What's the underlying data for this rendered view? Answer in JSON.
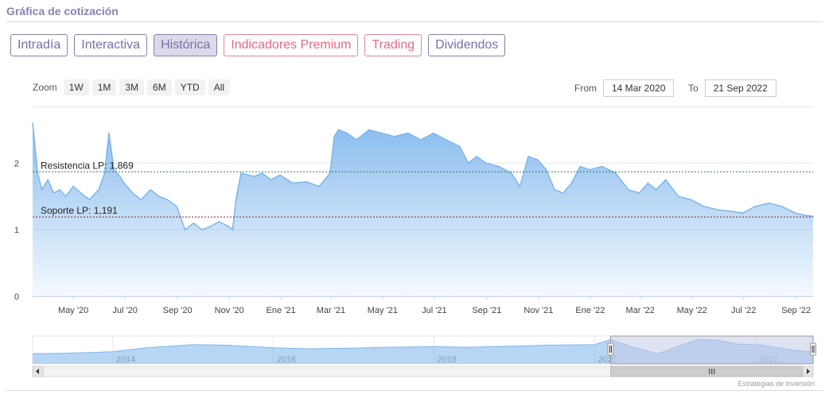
{
  "header": {
    "title": "Gráfica de cotización"
  },
  "tabs": [
    {
      "label": "Intradía",
      "style": "purple"
    },
    {
      "label": "Interactiva",
      "style": "purple"
    },
    {
      "label": "Histórica",
      "style": "purple",
      "active": true
    },
    {
      "label": "Indicadores Premium",
      "style": "pink"
    },
    {
      "label": "Trading",
      "style": "pink"
    },
    {
      "label": "Dividendos",
      "style": "purple"
    }
  ],
  "zoom": {
    "label": "Zoom",
    "buttons": [
      "1W",
      "1M",
      "3M",
      "6M",
      "YTD",
      "All"
    ]
  },
  "range": {
    "from_label": "From",
    "from_value": "14 Mar 2020",
    "to_label": "To",
    "to_value": "21 Sep 2022"
  },
  "credits": "Estrategias de Inversión",
  "colors": {
    "line": "#7cb5ec",
    "resistance": "#2e7d4f",
    "support": "#8b1a2b",
    "nav_mask": "#c5cae5"
  },
  "chart_data": {
    "type": "area",
    "series": [
      {
        "x": [
          "2020-03-14",
          "2020-03-20",
          "2020-03-25",
          "2020-04-01",
          "2020-04-08",
          "2020-04-15",
          "2020-04-22",
          "2020-05-01",
          "2020-05-10",
          "2020-05-20",
          "2020-05-31",
          "2020-06-07",
          "2020-06-12",
          "2020-06-18",
          "2020-06-25",
          "2020-06-30",
          "2020-07-10",
          "2020-07-20",
          "2020-07-31",
          "2020-08-10",
          "2020-08-20",
          "2020-08-31",
          "2020-09-10",
          "2020-09-20",
          "2020-09-30",
          "2020-10-10",
          "2020-10-20",
          "2020-10-31",
          "2020-11-05",
          "2020-11-09",
          "2020-11-15",
          "2020-11-30",
          "2020-12-10",
          "2020-12-20",
          "2020-12-31",
          "2021-01-15",
          "2021-01-31",
          "2021-02-15",
          "2021-02-28",
          "2021-03-05",
          "2021-03-10",
          "2021-03-20",
          "2021-03-31",
          "2021-04-15",
          "2021-04-30",
          "2021-05-15",
          "2021-05-31",
          "2021-06-15",
          "2021-06-30",
          "2021-07-15",
          "2021-07-31",
          "2021-08-10",
          "2021-08-20",
          "2021-08-31",
          "2021-09-15",
          "2021-09-30",
          "2021-10-10",
          "2021-10-20",
          "2021-10-31",
          "2021-11-10",
          "2021-11-20",
          "2021-11-30",
          "2021-12-10",
          "2021-12-20",
          "2021-12-31",
          "2022-01-15",
          "2022-01-31",
          "2022-02-15",
          "2022-02-28",
          "2022-03-10",
          "2022-03-20",
          "2022-03-31",
          "2022-04-15",
          "2022-04-30",
          "2022-05-15",
          "2022-05-31",
          "2022-06-15",
          "2022-06-30",
          "2022-07-15",
          "2022-07-31",
          "2022-08-15",
          "2022-08-31",
          "2022-09-10",
          "2022-09-21"
        ],
        "values": [
          2.6,
          1.85,
          1.6,
          1.75,
          1.55,
          1.6,
          1.5,
          1.65,
          1.55,
          1.45,
          1.6,
          1.85,
          2.45,
          1.9,
          1.8,
          1.7,
          1.55,
          1.45,
          1.6,
          1.5,
          1.45,
          1.35,
          1.0,
          1.1,
          1.0,
          1.05,
          1.12,
          1.05,
          1.0,
          1.45,
          1.85,
          1.8,
          1.85,
          1.75,
          1.82,
          1.7,
          1.72,
          1.65,
          1.85,
          2.4,
          2.5,
          2.45,
          2.35,
          2.5,
          2.45,
          2.4,
          2.45,
          2.35,
          2.45,
          2.35,
          2.25,
          2.0,
          2.1,
          2.0,
          1.95,
          1.85,
          1.65,
          2.1,
          2.05,
          1.9,
          1.6,
          1.55,
          1.7,
          1.95,
          1.9,
          1.95,
          1.85,
          1.6,
          1.55,
          1.7,
          1.6,
          1.75,
          1.5,
          1.45,
          1.35,
          1.3,
          1.28,
          1.25,
          1.35,
          1.4,
          1.35,
          1.25,
          1.22,
          1.2
        ]
      }
    ],
    "ylim": [
      0,
      2.6
    ],
    "y_ticks": [
      0,
      1,
      2
    ],
    "x_ticks": [
      {
        "date": "2020-05-01",
        "label": "May '20"
      },
      {
        "date": "2020-07-01",
        "label": "Jul '20"
      },
      {
        "date": "2020-09-01",
        "label": "Sep '20"
      },
      {
        "date": "2020-11-01",
        "label": "Nov '20"
      },
      {
        "date": "2021-01-01",
        "label": "Ene '21"
      },
      {
        "date": "2021-03-01",
        "label": "Mar '21"
      },
      {
        "date": "2021-05-01",
        "label": "May '21"
      },
      {
        "date": "2021-07-01",
        "label": "Jul '21"
      },
      {
        "date": "2021-09-01",
        "label": "Sep '21"
      },
      {
        "date": "2021-11-01",
        "label": "Nov '21"
      },
      {
        "date": "2022-01-01",
        "label": "Ene '22"
      },
      {
        "date": "2022-03-01",
        "label": "Mar '22"
      },
      {
        "date": "2022-05-01",
        "label": "May '22"
      },
      {
        "date": "2022-07-01",
        "label": "Jul '22"
      },
      {
        "date": "2022-09-01",
        "label": "Sep '22"
      }
    ],
    "x_range": [
      "2020-03-14",
      "2022-09-21"
    ],
    "annotations": [
      {
        "label": "Resistencia LP: 1,869",
        "value": 1.869,
        "color": "resistance"
      },
      {
        "label": "Soporte LP: 1,191",
        "value": 1.191,
        "color": "support"
      }
    ],
    "grid": true,
    "navigator": {
      "x_range": [
        "2013-01-01",
        "2022-09-21"
      ],
      "selected": [
        "2020-03-14",
        "2022-09-21"
      ],
      "tick_labels": [
        {
          "date": "2014-01-01",
          "label": "2014"
        },
        {
          "date": "2016-01-01",
          "label": "2016"
        },
        {
          "date": "2018-01-01",
          "label": "2018"
        },
        {
          "date": "2020-01-01",
          "label": "2020"
        },
        {
          "date": "2022-01-01",
          "label": "2022"
        }
      ],
      "x": [
        "2013-01-01",
        "2013-06-01",
        "2014-01-01",
        "2014-06-01",
        "2015-01-01",
        "2015-06-01",
        "2016-01-01",
        "2016-06-01",
        "2017-01-01",
        "2017-06-01",
        "2018-01-01",
        "2018-06-01",
        "2019-01-01",
        "2019-06-01",
        "2020-01-01",
        "2020-03-14",
        "2020-06-15",
        "2020-10-15",
        "2021-01-15",
        "2021-04-15",
        "2021-07-15",
        "2021-10-15",
        "2022-01-15",
        "2022-04-15",
        "2022-07-15",
        "2022-09-21"
      ],
      "values": [
        1.0,
        1.05,
        1.2,
        1.6,
        1.9,
        1.85,
        1.6,
        1.5,
        1.55,
        1.65,
        1.7,
        1.65,
        1.75,
        1.85,
        1.9,
        2.4,
        1.7,
        1.0,
        1.75,
        2.4,
        2.35,
        1.95,
        1.9,
        1.6,
        1.3,
        1.2
      ]
    }
  }
}
